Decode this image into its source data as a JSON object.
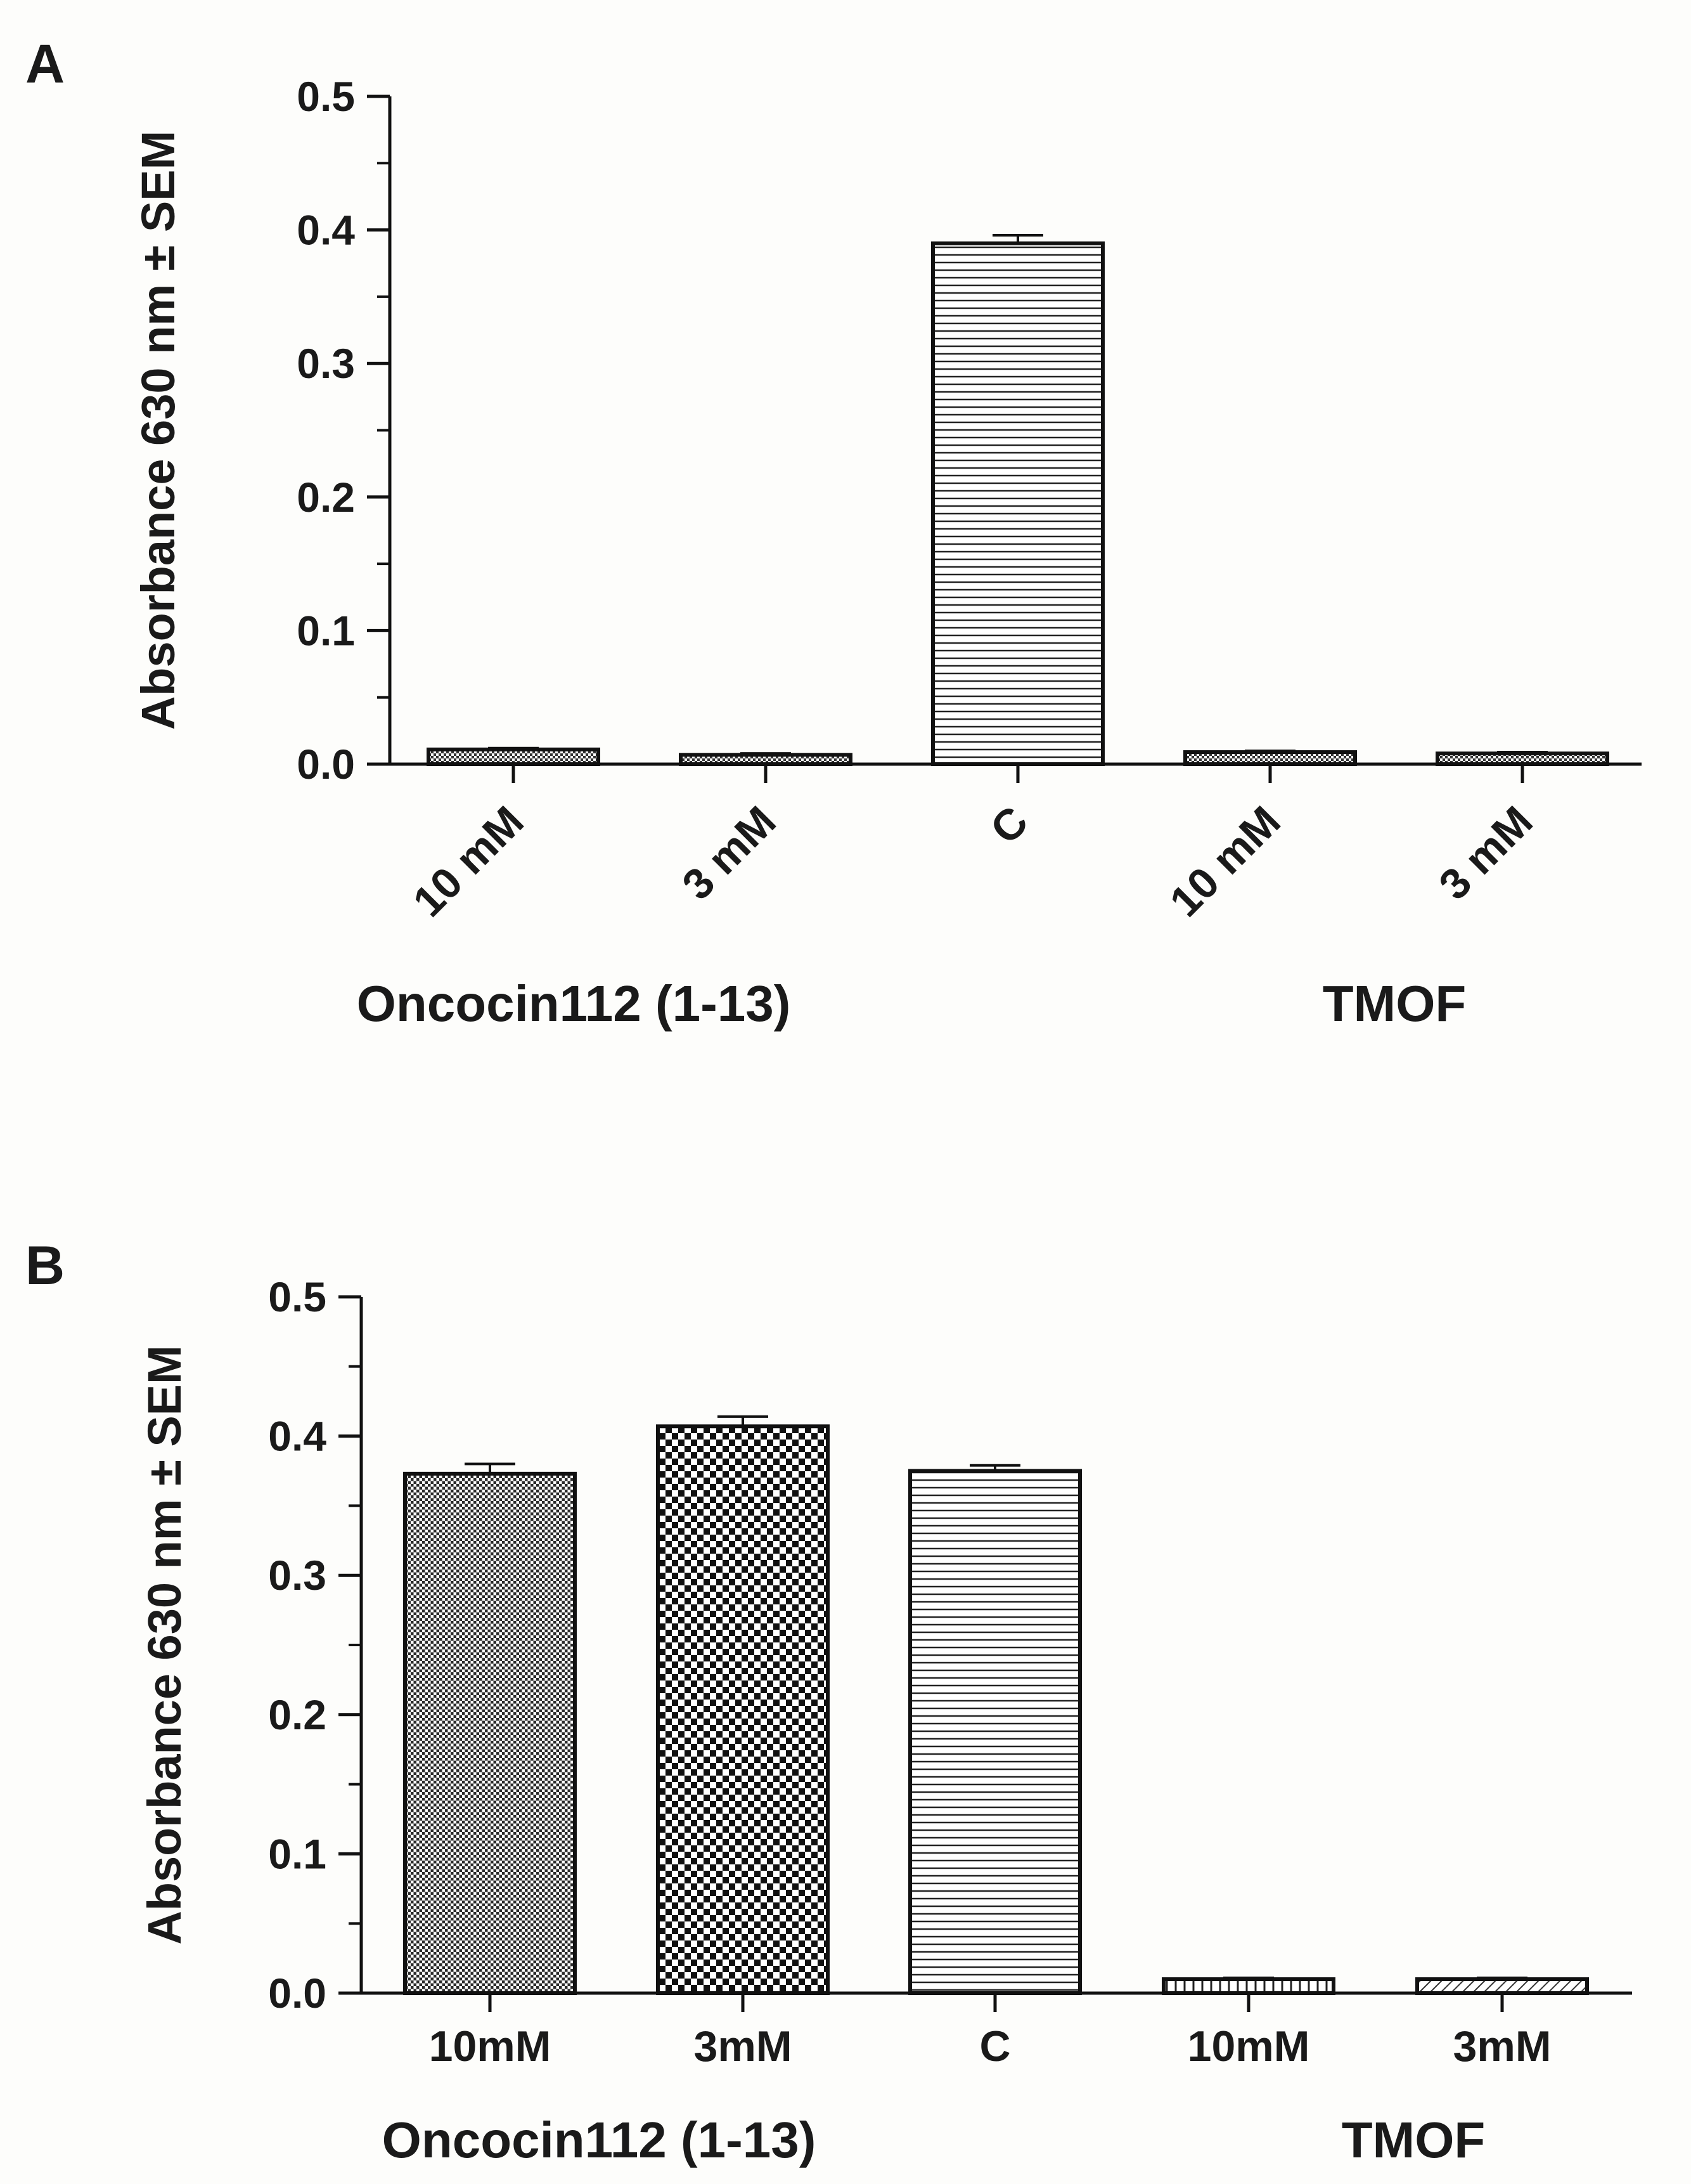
{
  "colors": {
    "ink": "#111111",
    "background": "#fdfdfb"
  },
  "chart_data": [
    {
      "panel": "A",
      "type": "bar",
      "ylabel": "Absorbance 630 nm ± SEM",
      "ylim": [
        0,
        0.5
      ],
      "yticks": [
        "0.0",
        "0.1",
        "0.2",
        "0.3",
        "0.4",
        "0.5"
      ],
      "categories": [
        "10 mM",
        "3 mM",
        "C",
        "10 mM",
        "3 mM"
      ],
      "values": [
        0.011,
        0.007,
        0.39,
        0.009,
        0.008
      ],
      "errors": [
        0.001,
        0.001,
        0.006,
        0.001,
        0.001
      ],
      "patterns": [
        "dots",
        "dots",
        "hlines",
        "dots",
        "dots"
      ],
      "groups": [
        {
          "label": "Oncocin112 (1-13)",
          "categories": [
            0,
            1
          ]
        },
        {
          "label": "TMOF",
          "categories": [
            3,
            4
          ]
        }
      ]
    },
    {
      "panel": "B",
      "type": "bar",
      "ylabel": "Absorbance 630 nm ± SEM",
      "ylim": [
        0,
        0.5
      ],
      "yticks": [
        "0.0",
        "0.1",
        "0.2",
        "0.3",
        "0.4",
        "0.5"
      ],
      "categories": [
        "10mM",
        "3mM",
        "C",
        "10mM",
        "3mM"
      ],
      "values": [
        0.373,
        0.407,
        0.375,
        0.01,
        0.01
      ],
      "errors": [
        0.007,
        0.007,
        0.004,
        0.001,
        0.001
      ],
      "patterns": [
        "finecheck",
        "check",
        "hlines",
        "vlines",
        "diag"
      ],
      "groups": [
        {
          "label": "Oncocin112 (1-13)",
          "categories": [
            0,
            1
          ]
        },
        {
          "label": "TMOF",
          "categories": [
            3,
            4
          ]
        }
      ]
    }
  ]
}
